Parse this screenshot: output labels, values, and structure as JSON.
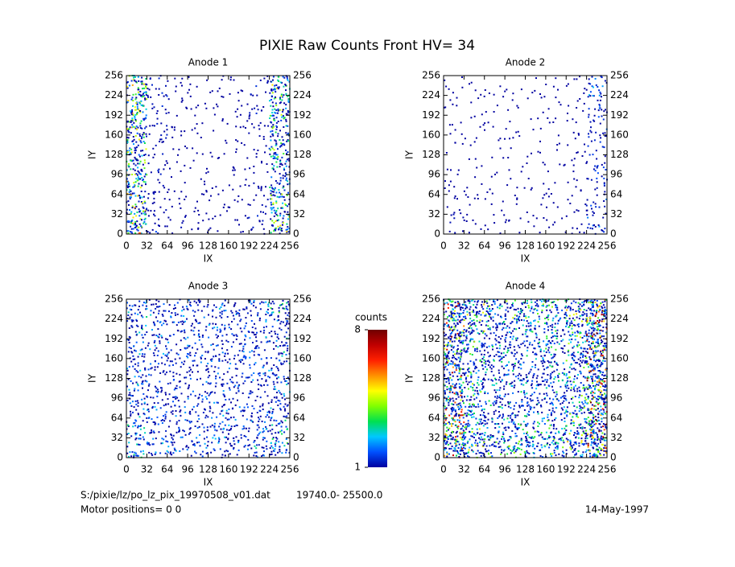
{
  "title": "PIXIE Raw Counts Front HV= 34",
  "chart_data": [
    {
      "type": "heatmap",
      "title": "Anode 1",
      "xlabel": "IX",
      "ylabel": "IY",
      "xlim": [
        0,
        256
      ],
      "ylim": [
        0,
        256
      ],
      "xticks": [
        0,
        32,
        64,
        96,
        128,
        160,
        192,
        224,
        256
      ],
      "yticks": [
        0,
        32,
        64,
        96,
        128,
        160,
        192,
        224,
        256
      ],
      "z": [
        [
          3.5,
          0.9,
          0.5,
          0.4,
          0.4,
          0.5,
          0.8,
          3.2
        ],
        [
          3.8,
          0.9,
          0.5,
          0.4,
          0.4,
          0.4,
          0.8,
          3.4
        ],
        [
          3.6,
          0.8,
          0.5,
          0.4,
          0.3,
          0.4,
          0.7,
          3.0
        ],
        [
          3.4,
          0.8,
          0.4,
          0.3,
          0.3,
          0.4,
          0.6,
          2.8
        ],
        [
          3.2,
          0.8,
          0.4,
          0.3,
          0.3,
          0.4,
          0.6,
          2.6
        ],
        [
          3.4,
          0.8,
          0.4,
          0.4,
          0.3,
          0.4,
          0.6,
          2.8
        ],
        [
          3.6,
          0.8,
          0.5,
          0.4,
          0.4,
          0.4,
          0.7,
          3.0
        ],
        [
          3.8,
          1.0,
          0.6,
          0.5,
          0.5,
          0.5,
          0.8,
          3.4
        ]
      ]
    },
    {
      "type": "heatmap",
      "title": "Anode 2",
      "xlabel": "IX",
      "ylabel": "IY",
      "xlim": [
        0,
        256
      ],
      "ylim": [
        0,
        256
      ],
      "xticks": [
        0,
        32,
        64,
        96,
        128,
        160,
        192,
        224,
        256
      ],
      "yticks": [
        0,
        32,
        64,
        96,
        128,
        160,
        192,
        224,
        256
      ],
      "z": [
        [
          0.4,
          0.3,
          0.3,
          0.3,
          0.3,
          0.3,
          0.5,
          1.6
        ],
        [
          0.4,
          0.3,
          0.3,
          0.3,
          0.3,
          0.3,
          0.5,
          1.4
        ],
        [
          0.4,
          0.3,
          0.3,
          0.3,
          0.3,
          0.3,
          0.4,
          1.2
        ],
        [
          0.3,
          0.3,
          0.3,
          0.3,
          0.3,
          0.3,
          0.4,
          1.0
        ],
        [
          0.3,
          0.3,
          0.3,
          0.3,
          0.3,
          0.3,
          0.4,
          1.0
        ],
        [
          0.4,
          0.3,
          0.3,
          0.3,
          0.3,
          0.3,
          0.4,
          1.1
        ],
        [
          0.5,
          0.4,
          0.3,
          0.3,
          0.3,
          0.3,
          0.5,
          1.2
        ],
        [
          0.6,
          0.5,
          0.4,
          0.4,
          0.4,
          0.4,
          0.5,
          1.3
        ]
      ]
    },
    {
      "type": "heatmap",
      "title": "Anode 3",
      "xlabel": "IX",
      "ylabel": "IY",
      "xlim": [
        0,
        256
      ],
      "ylim": [
        0,
        256
      ],
      "xticks": [
        0,
        32,
        64,
        96,
        128,
        160,
        192,
        224,
        256
      ],
      "yticks": [
        0,
        32,
        64,
        96,
        128,
        160,
        192,
        224,
        256
      ],
      "z": [
        [
          2.0,
          1.6,
          1.5,
          1.5,
          1.6,
          1.5,
          1.8,
          2.4
        ],
        [
          1.9,
          1.5,
          1.4,
          1.4,
          1.5,
          1.4,
          1.6,
          2.1
        ],
        [
          1.8,
          1.5,
          1.3,
          1.4,
          1.5,
          1.4,
          1.5,
          1.9
        ],
        [
          1.8,
          1.4,
          1.3,
          1.3,
          1.5,
          1.3,
          1.5,
          1.8
        ],
        [
          1.8,
          1.4,
          1.3,
          1.3,
          1.5,
          1.3,
          1.5,
          1.8
        ],
        [
          1.9,
          1.5,
          1.4,
          1.4,
          1.5,
          1.4,
          1.6,
          1.9
        ],
        [
          2.0,
          1.6,
          1.5,
          1.5,
          1.6,
          1.5,
          1.7,
          2.1
        ],
        [
          2.1,
          1.7,
          1.5,
          1.5,
          1.6,
          1.5,
          1.8,
          2.4
        ]
      ]
    },
    {
      "type": "heatmap",
      "title": "Anode 4",
      "xlabel": "IX",
      "ylabel": "IY",
      "xlim": [
        0,
        256
      ],
      "ylim": [
        0,
        256
      ],
      "xticks": [
        0,
        32,
        64,
        96,
        128,
        160,
        192,
        224,
        256
      ],
      "yticks": [
        0,
        32,
        64,
        96,
        128,
        160,
        192,
        224,
        256
      ],
      "z": [
        [
          5.0,
          3.4,
          2.8,
          2.8,
          2.8,
          2.8,
          3.4,
          5.5
        ],
        [
          4.8,
          3.0,
          2.4,
          2.3,
          2.3,
          2.4,
          3.0,
          5.4
        ],
        [
          4.6,
          2.8,
          2.2,
          2.1,
          2.1,
          2.2,
          2.8,
          5.2
        ],
        [
          4.5,
          2.7,
          2.1,
          2.0,
          2.0,
          2.1,
          2.7,
          5.2
        ],
        [
          4.5,
          2.7,
          2.1,
          2.0,
          2.0,
          2.1,
          2.7,
          5.2
        ],
        [
          4.6,
          2.8,
          2.2,
          2.1,
          2.1,
          2.2,
          2.8,
          5.3
        ],
        [
          4.8,
          3.0,
          2.4,
          2.3,
          2.3,
          2.4,
          3.0,
          5.4
        ],
        [
          5.0,
          3.4,
          2.8,
          2.8,
          2.8,
          2.8,
          3.4,
          5.5
        ]
      ]
    }
  ],
  "colorbar": {
    "label": "counts",
    "lim": [
      1,
      8
    ],
    "ticks": [
      1,
      8
    ],
    "colors": [
      "#0000a0",
      "#0050ff",
      "#00c8ff",
      "#00e050",
      "#80ff00",
      "#ffff00",
      "#ff9000",
      "#ff2000",
      "#c00000",
      "#700000"
    ]
  },
  "footer": {
    "file": "S:/pixie/lz/po_lz_pix_19970508_v01.dat",
    "range": "19740.0- 25500.0",
    "motor": "Motor positions= 0 0",
    "date": "14-May-1997"
  }
}
